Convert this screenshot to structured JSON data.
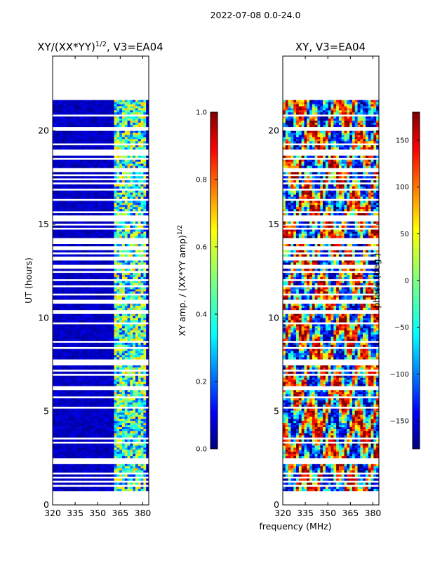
{
  "suptitle": "2022-07-08 0.0-24.0",
  "shared_xlabel": "frequency (MHz)",
  "chart_data": [
    {
      "type": "heatmap",
      "title_base": "XY/(XX*YY)",
      "title_sup": "1/2",
      "title_tail": ", V3=EA04",
      "xlabel": "frequency (MHz)",
      "ylabel": "UT (hours)",
      "xlim": [
        320,
        384
      ],
      "ylim": [
        0,
        24
      ],
      "xticks": [
        320,
        335,
        350,
        365,
        380
      ],
      "yticks": [
        0,
        5,
        10,
        15,
        20
      ],
      "data_time_range": [
        0.75,
        21.65
      ],
      "colormap": "jet",
      "colorbar": {
        "label_base": "XY amp. / (XX*YY amp)",
        "label_sup": "1/2",
        "range": [
          0.0,
          1.0
        ],
        "ticks": [
          0.0,
          0.2,
          0.4,
          0.6,
          0.8,
          1.0
        ],
        "tick_labels": [
          "0.0",
          "0.2",
          "0.4",
          "0.6",
          "0.8",
          "1.0"
        ]
      }
    },
    {
      "type": "heatmap",
      "title_base": "XY, V3=EA04",
      "xlabel": "frequency (MHz)",
      "ylabel": "",
      "xlim": [
        320,
        384
      ],
      "ylim": [
        0,
        24
      ],
      "xticks": [
        320,
        335,
        350,
        365,
        380
      ],
      "yticks": [
        0,
        5,
        10,
        15,
        20
      ],
      "data_time_range": [
        0.75,
        21.65
      ],
      "colormap": "jet",
      "colorbar": {
        "label_base": "phase (deg.)",
        "range": [
          -180,
          180
        ],
        "ticks": [
          -150,
          -100,
          -50,
          0,
          50,
          100,
          150
        ],
        "tick_labels": [
          "−150",
          "−100",
          "−50",
          "0",
          "50",
          "100",
          "150"
        ]
      }
    }
  ]
}
